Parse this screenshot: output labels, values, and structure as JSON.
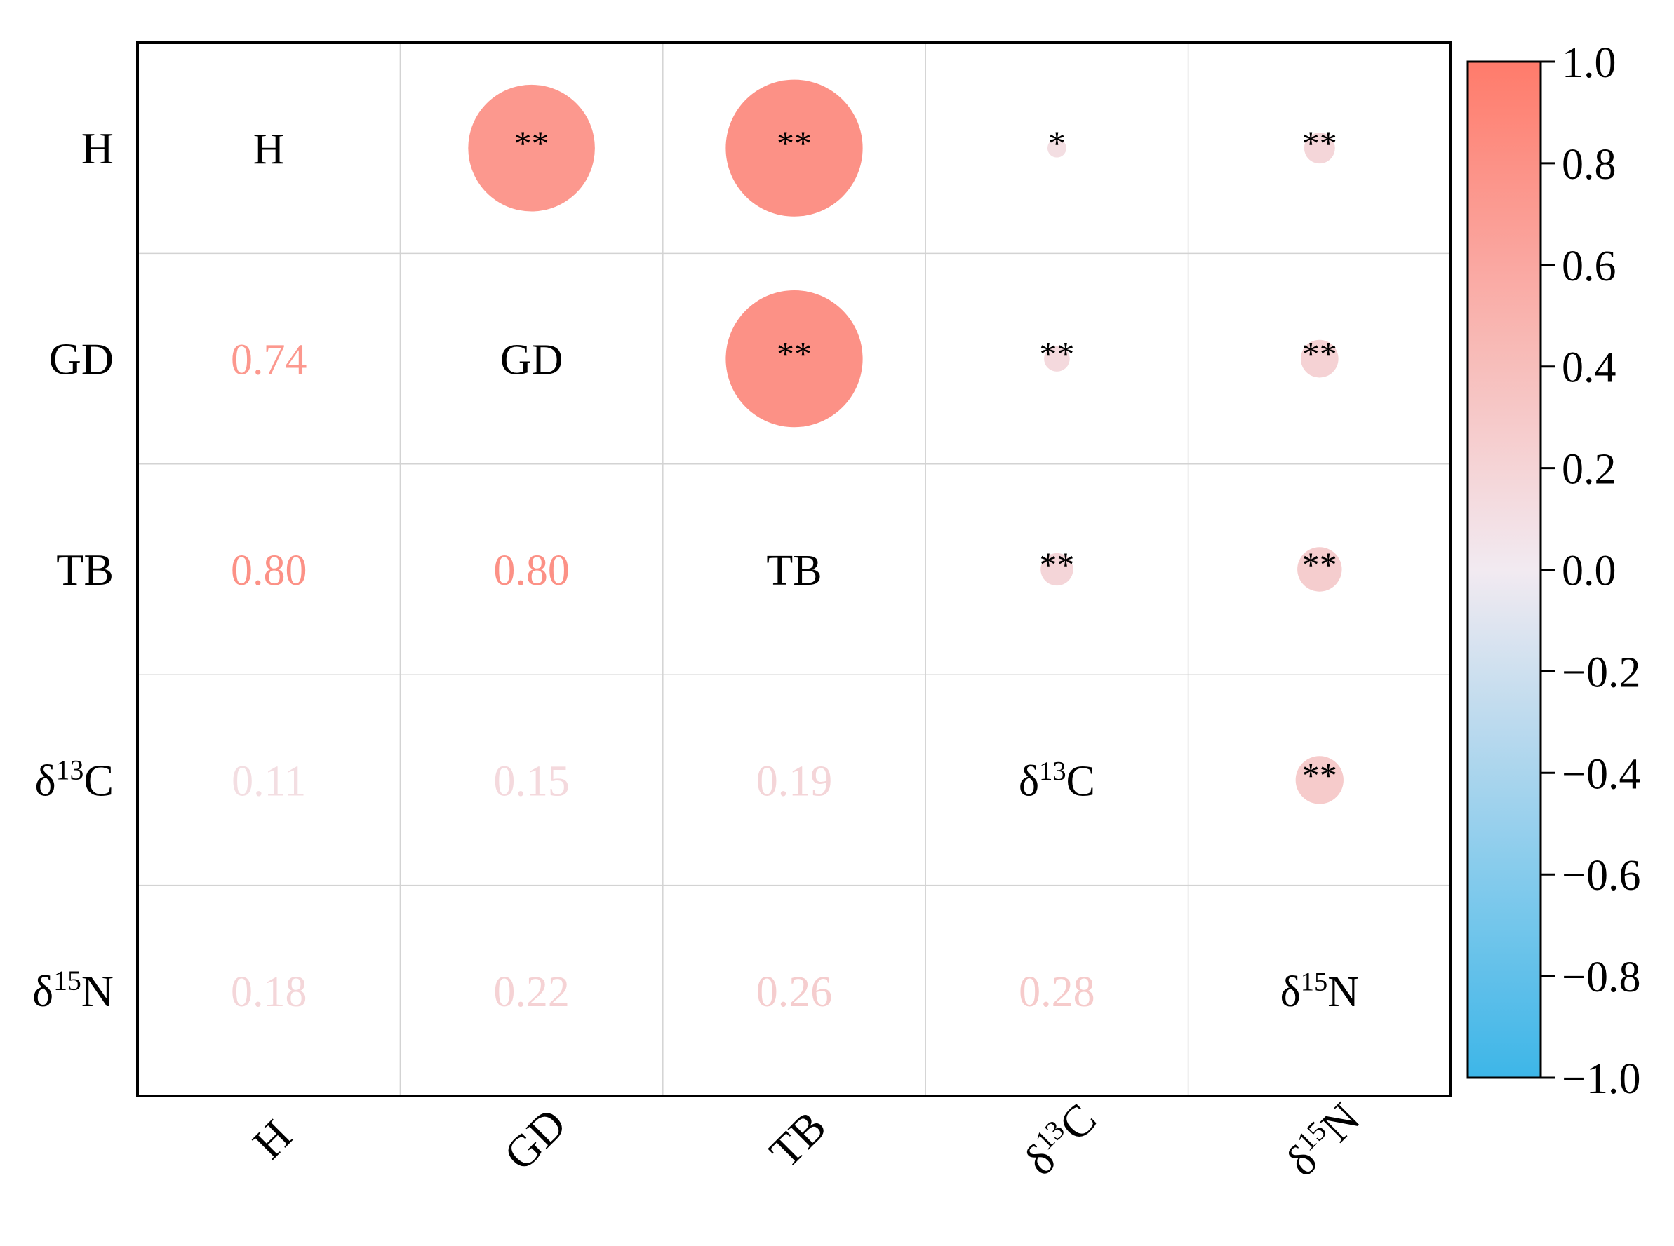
{
  "colors": {
    "positive": "#ff7b6b",
    "zero": "#f2eaf1",
    "negative": "#3db6e8",
    "grid": "#d3d3d3",
    "frame": "#000000",
    "text": "#000000"
  },
  "chart_data": {
    "type": "heatmap",
    "title": "",
    "variables": [
      "H",
      "GD",
      "TB",
      "δ13C",
      "δ15N"
    ],
    "variable_labels": [
      {
        "base": "H",
        "sup": "",
        "after": ""
      },
      {
        "base": "GD",
        "sup": "",
        "after": ""
      },
      {
        "base": "TB",
        "sup": "",
        "after": ""
      },
      {
        "base": "δ",
        "sup": "13",
        "after": "C"
      },
      {
        "base": "δ",
        "sup": "15",
        "after": "N"
      }
    ],
    "matrix": [
      [
        1.0,
        0.74,
        0.8,
        0.11,
        0.18
      ],
      [
        0.74,
        1.0,
        0.8,
        0.15,
        0.22
      ],
      [
        0.8,
        0.8,
        1.0,
        0.19,
        0.26
      ],
      [
        0.11,
        0.15,
        0.19,
        1.0,
        0.28
      ],
      [
        0.18,
        0.22,
        0.26,
        0.28,
        1.0
      ]
    ],
    "lower_labels": [
      [
        null,
        null,
        null,
        null,
        null
      ],
      [
        "0.74",
        null,
        null,
        null,
        null
      ],
      [
        "0.80",
        "0.80",
        null,
        null,
        null
      ],
      [
        "0.11",
        "0.15",
        "0.19",
        null,
        null
      ],
      [
        "0.18",
        "0.22",
        "0.26",
        "0.28",
        null
      ]
    ],
    "significance": [
      [
        "",
        "**",
        "**",
        "*",
        "**"
      ],
      [
        "",
        "",
        "**",
        "**",
        "**"
      ],
      [
        "",
        "",
        "",
        "**",
        "**"
      ],
      [
        "",
        "",
        "",
        "",
        "**"
      ],
      [
        "",
        "",
        "",
        "",
        ""
      ]
    ],
    "colorbar": {
      "range": [
        -1.0,
        1.0
      ],
      "ticks": [
        1.0,
        0.8,
        0.6,
        0.4,
        0.2,
        0.0,
        -0.2,
        -0.4,
        -0.6,
        -0.8,
        -1.0
      ],
      "tick_labels": [
        "1.0",
        "0.8",
        "0.6",
        "0.4",
        "0.2",
        "0.0",
        "−0.2",
        "−0.4",
        "−0.6",
        "−0.8",
        "−1.0"
      ],
      "placement": "right"
    }
  }
}
